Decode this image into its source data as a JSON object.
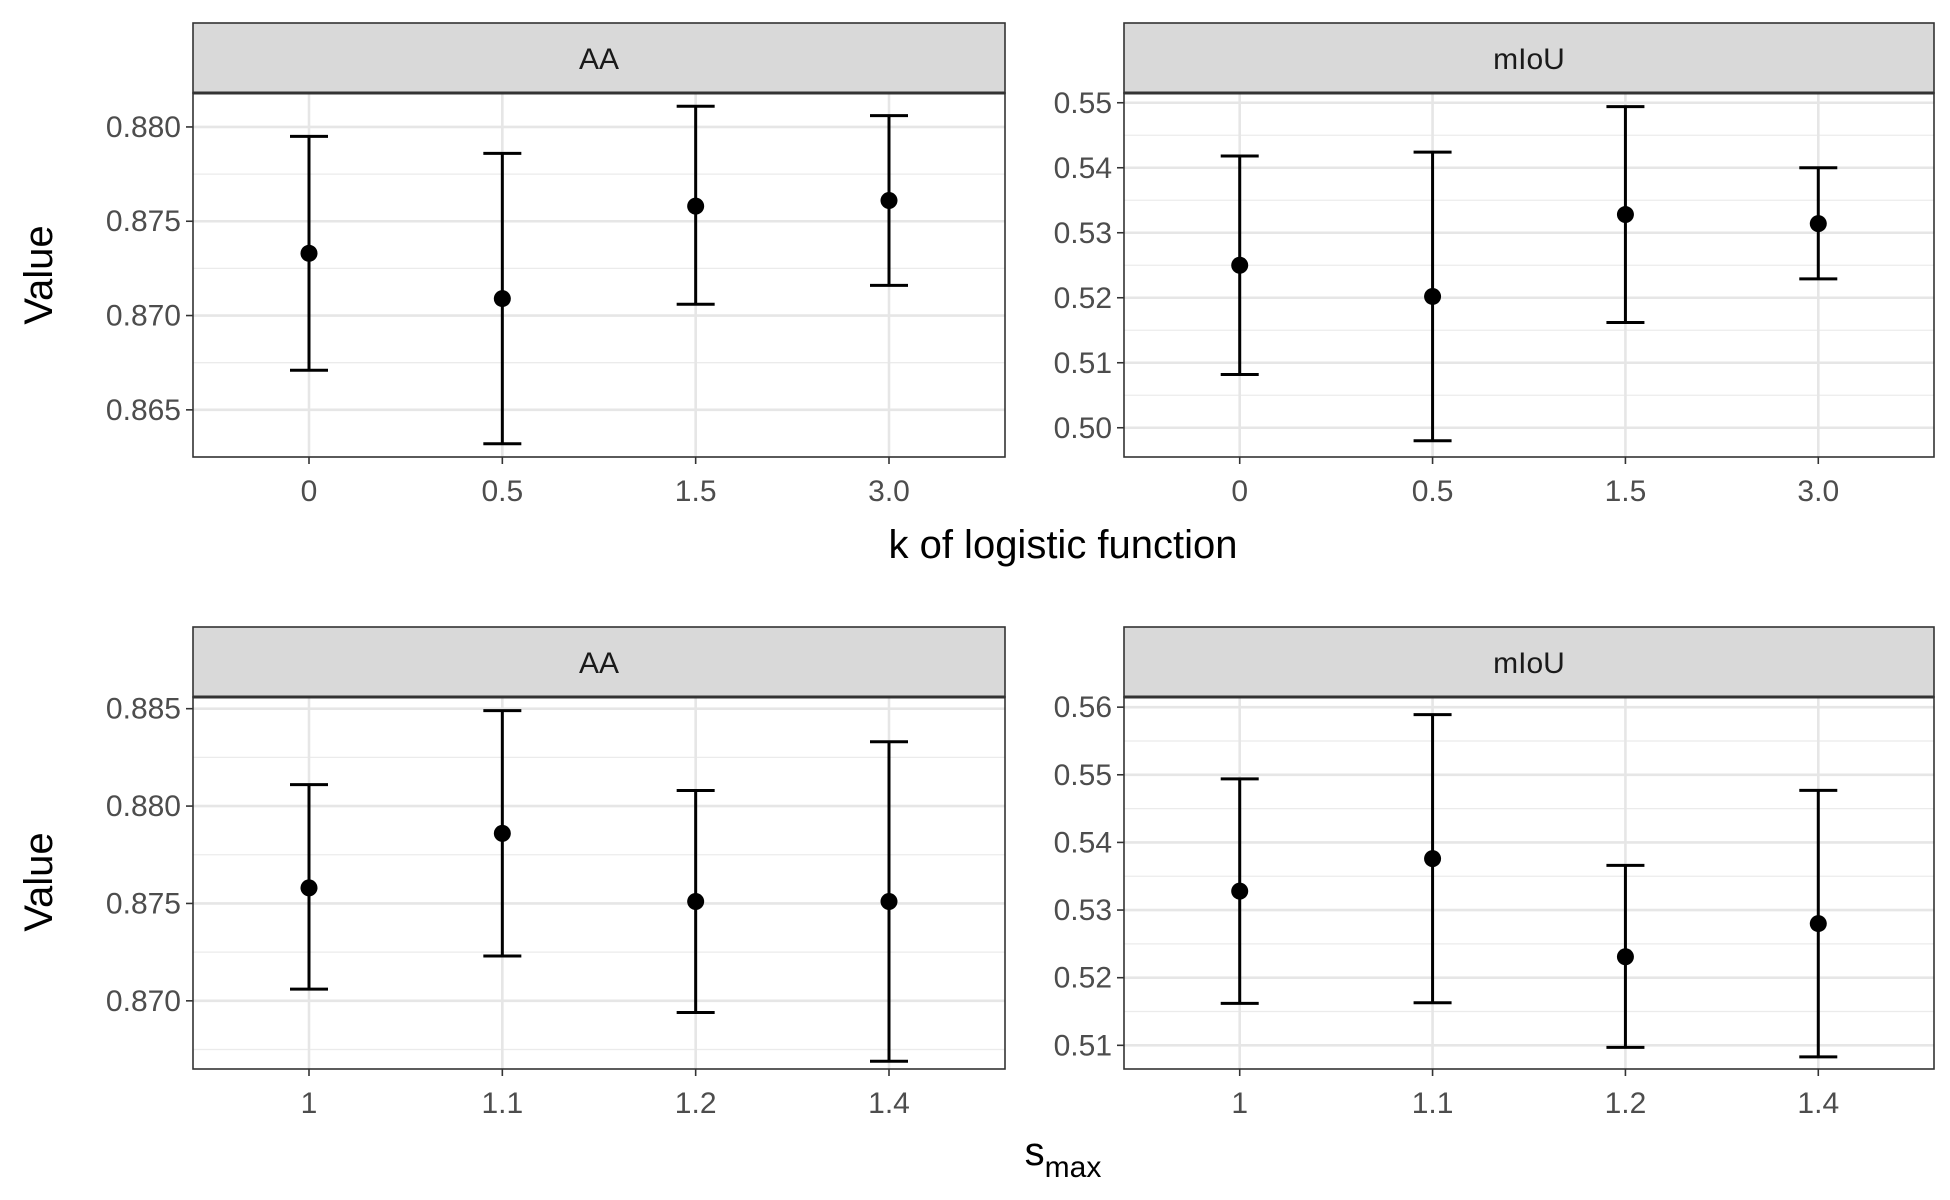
{
  "chart_data": [
    {
      "type": "errorbar",
      "row_xlabel": "k of logistic function",
      "ylabel": "Value",
      "categories": [
        "0",
        "0.5",
        "1.5",
        "3.0"
      ],
      "panels": [
        {
          "strip": "AA",
          "ylim": [
            0.8625,
            0.8795
          ],
          "ymax_display": 0.8818,
          "ticks": [
            0.865,
            0.87,
            0.875,
            0.88
          ],
          "tick_labels": [
            "0.865",
            "0.870",
            "0.875",
            "0.880"
          ],
          "minor_step": 0.0025,
          "points": [
            {
              "mean": 0.8733,
              "low": 0.8671,
              "high": 0.8795
            },
            {
              "mean": 0.8709,
              "low": 0.8632,
              "high": 0.8786
            },
            {
              "mean": 0.8758,
              "low": 0.8706,
              "high": 0.8811
            },
            {
              "mean": 0.8761,
              "low": 0.8716,
              "high": 0.8806
            }
          ]
        },
        {
          "strip": "mIoU",
          "ylim": [
            0.4955,
            0.5515
          ],
          "ticks": [
            0.5,
            0.51,
            0.52,
            0.53,
            0.54,
            0.55
          ],
          "tick_labels": [
            "0.50",
            "0.51",
            "0.52",
            "0.53",
            "0.54",
            "0.55"
          ],
          "minor_step": 0.005,
          "points": [
            {
              "mean": 0.525,
              "low": 0.5082,
              "high": 0.5418
            },
            {
              "mean": 0.5202,
              "low": 0.498,
              "high": 0.5424
            },
            {
              "mean": 0.5328,
              "low": 0.5162,
              "high": 0.5494
            },
            {
              "mean": 0.5314,
              "low": 0.5229,
              "high": 0.54
            }
          ]
        }
      ]
    },
    {
      "type": "errorbar",
      "row_xlabel_main": "s",
      "row_xlabel_sub": "max",
      "ylabel": "Value",
      "categories": [
        "1",
        "1.1",
        "1.2",
        "1.4"
      ],
      "panels": [
        {
          "strip": "AA",
          "ylim": [
            0.8665,
            0.8856
          ],
          "ticks": [
            0.87,
            0.875,
            0.88,
            0.885
          ],
          "tick_labels": [
            "0.870",
            "0.875",
            "0.880",
            "0.885"
          ],
          "minor_step": 0.0025,
          "points": [
            {
              "mean": 0.8758,
              "low": 0.8706,
              "high": 0.8811
            },
            {
              "mean": 0.8786,
              "low": 0.8723,
              "high": 0.8849
            },
            {
              "mean": 0.8751,
              "low": 0.8694,
              "high": 0.8808
            },
            {
              "mean": 0.8751,
              "low": 0.8669,
              "high": 0.8833
            }
          ]
        },
        {
          "strip": "mIoU",
          "ylim": [
            0.5065,
            0.5615
          ],
          "ticks": [
            0.51,
            0.52,
            0.53,
            0.54,
            0.55,
            0.56
          ],
          "tick_labels": [
            "0.51",
            "0.52",
            "0.53",
            "0.54",
            "0.55",
            "0.56"
          ],
          "minor_step": 0.005,
          "points": [
            {
              "mean": 0.5328,
              "low": 0.5162,
              "high": 0.5494
            },
            {
              "mean": 0.5376,
              "low": 0.5163,
              "high": 0.5589
            },
            {
              "mean": 0.5231,
              "low": 0.5097,
              "high": 0.5366
            },
            {
              "mean": 0.528,
              "low": 0.5083,
              "high": 0.5477
            }
          ]
        }
      ]
    }
  ]
}
